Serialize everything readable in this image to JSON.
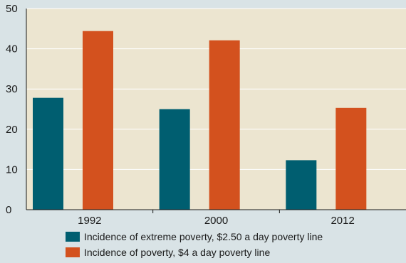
{
  "chart_data": {
    "type": "bar",
    "categories": [
      "1992",
      "2000",
      "2012"
    ],
    "series": [
      {
        "name": "Incidence of extreme poverty, $2.50 a day poverty line",
        "values": [
          27.8,
          25.0,
          12.3
        ],
        "color": "#005e70"
      },
      {
        "name": "Incidence of poverty, $4 a day poverty line",
        "values": [
          44.4,
          42.1,
          25.3
        ],
        "color": "#d3511e"
      }
    ],
    "ylim": [
      0,
      50
    ],
    "yticks": [
      0,
      10,
      20,
      30,
      40,
      50
    ],
    "grid": true,
    "legend_position": "bottom",
    "plot_background": "#ece5d0",
    "grid_color": "#ffffff"
  }
}
